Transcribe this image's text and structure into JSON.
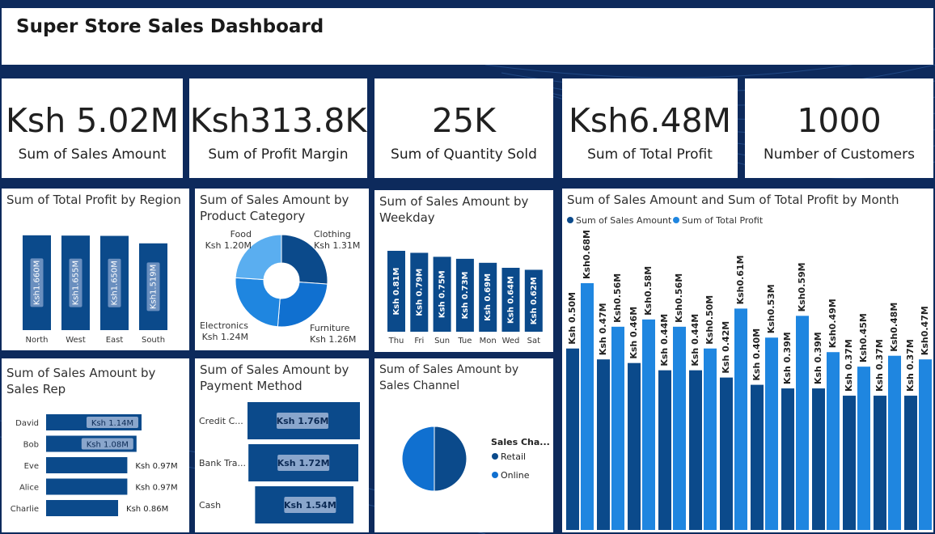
{
  "title": "Super Store Sales Dashboard",
  "colors": {
    "dark": "#0b4a8b",
    "light": "#1f86e0",
    "lightest": "#5aaef0",
    "bg": "#0d2a5c"
  },
  "kpis": [
    {
      "value": "Ksh 5.02M",
      "label": "Sum of Sales Amount"
    },
    {
      "value": "Ksh313.8K",
      "label": "Sum of Profit Margin"
    },
    {
      "value": "25K",
      "label": "Sum of Quantity Sold"
    },
    {
      "value": "Ksh6.48M",
      "label": "Sum of Total Profit"
    },
    {
      "value": "1000",
      "label": "Number of Customers"
    }
  ],
  "region": {
    "title": "Sum of Total Profit by Region",
    "chart_data": {
      "type": "bar",
      "categories": [
        "North",
        "West",
        "East",
        "South"
      ],
      "values": [
        1.66,
        1.655,
        1.65,
        1.519
      ],
      "labels": [
        "Ksh1.660M",
        "Ksh1.655M",
        "Ksh1.650M",
        "Ksh1.519M"
      ]
    }
  },
  "category": {
    "title": "Sum of Sales Amount by Product Category",
    "chart_data": {
      "type": "pie",
      "donut": true,
      "categories": [
        "Clothing",
        "Furniture",
        "Electronics",
        "Food"
      ],
      "values": [
        1.31,
        1.26,
        1.24,
        1.2
      ],
      "labels": [
        "Ksh 1.31M",
        "Ksh 1.26M",
        "Ksh 1.24M",
        "Ksh 1.20M"
      ],
      "colors": [
        "#0b4a8b",
        "#1070d0",
        "#1f86e0",
        "#5aaef0"
      ]
    }
  },
  "weekday": {
    "title": "Sum of Sales Amount by Weekday",
    "chart_data": {
      "type": "bar",
      "categories": [
        "Thu",
        "Fri",
        "Sun",
        "Tue",
        "Mon",
        "Wed",
        "Sat"
      ],
      "values": [
        0.81,
        0.79,
        0.75,
        0.73,
        0.69,
        0.64,
        0.62
      ],
      "labels": [
        "Ksh 0.81M",
        "Ksh 0.79M",
        "Ksh 0.75M",
        "Ksh 0.73M",
        "Ksh 0.69M",
        "Ksh 0.64M",
        "Ksh 0.62M"
      ]
    }
  },
  "month": {
    "title": "Sum of Sales Amount and Sum of Total Profit by Month",
    "chart_data": {
      "type": "bar",
      "series": [
        {
          "name": "Sum of Sales Amount",
          "values": [
            0.5,
            0.47,
            0.46,
            0.44,
            0.44,
            0.42,
            0.4,
            0.39,
            0.39,
            0.37,
            0.37,
            0.37
          ],
          "labels": [
            "Ksh 0.50M",
            "Ksh 0.47M",
            "Ksh 0.46M",
            "Ksh 0.44M",
            "Ksh 0.44M",
            "Ksh 0.42M",
            "Ksh 0.40M",
            "Ksh 0.39M",
            "Ksh 0.39M",
            "Ksh 0.37M",
            "Ksh 0.37M",
            "Ksh 0.37M"
          ]
        },
        {
          "name": "Sum of Total Profit",
          "values": [
            0.68,
            0.56,
            0.58,
            0.56,
            0.5,
            0.61,
            0.53,
            0.59,
            0.49,
            0.45,
            0.48,
            0.47
          ],
          "labels": [
            "Ksh0.68M",
            "Ksh0.56M",
            "Ksh0.58M",
            "Ksh0.56M",
            "Ksh0.50M",
            "Ksh0.61M",
            "Ksh0.53M",
            "Ksh0.59M",
            "Ksh0.49M",
            "Ksh0.45M",
            "Ksh0.48M",
            "Ksh0.47M"
          ]
        }
      ]
    }
  },
  "salesrep": {
    "title": "Sum of Sales Amount by Sales Rep",
    "chart_data": {
      "type": "bar",
      "orientation": "horizontal",
      "categories": [
        "David",
        "Bob",
        "Eve",
        "Alice",
        "Charlie"
      ],
      "values": [
        1.14,
        1.08,
        0.97,
        0.97,
        0.86
      ],
      "labels": [
        "Ksh 1.14M",
        "Ksh 1.08M",
        "Ksh 0.97M",
        "Ksh 0.97M",
        "Ksh 0.86M"
      ]
    }
  },
  "payment": {
    "title": "Sum of Sales Amount by Payment Method",
    "chart_data": {
      "type": "bar",
      "orientation": "horizontal",
      "categories": [
        "Credit C...",
        "Bank Tra...",
        "Cash"
      ],
      "values": [
        1.76,
        1.72,
        1.54
      ],
      "labels": [
        "Ksh 1.76M",
        "Ksh 1.72M",
        "Ksh 1.54M"
      ]
    }
  },
  "channel": {
    "title": "Sum of Sales Amount by Sales Channel",
    "legend_title": "Sales Cha...",
    "chart_data": {
      "type": "pie",
      "categories": [
        "Retail",
        "Online"
      ],
      "values": [
        50,
        50
      ],
      "colors": [
        "#0b4a8b",
        "#1070d0"
      ]
    }
  }
}
